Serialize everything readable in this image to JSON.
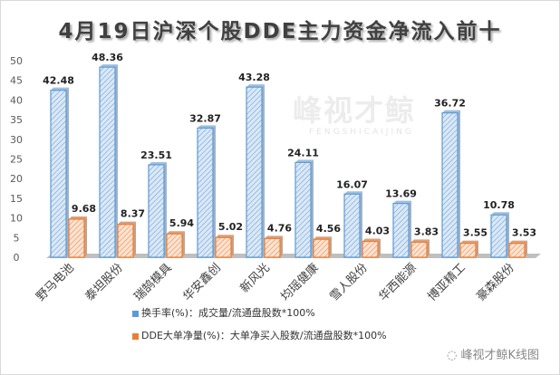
{
  "chart_data": {
    "type": "bar",
    "title": "4月19日沪深个股DDE主力资金净流入前十",
    "categories": [
      "野马电池",
      "泰坦股份",
      "瑞鹄模具",
      "华安鑫创",
      "新风光",
      "均瑶健康",
      "雪人股份",
      "华西能源",
      "博亚精工",
      "豪森股份"
    ],
    "series": [
      {
        "name": "换手率(%)：成交量/流通盘股数*100%",
        "color": "#5b9bd5",
        "values": [
          42.48,
          48.36,
          23.51,
          32.87,
          43.28,
          24.11,
          16.07,
          13.69,
          36.72,
          10.78
        ]
      },
      {
        "name": "DDE大单净量(%)：大单净买入股数/流通盘股数*100%",
        "color": "#ed7d31",
        "values": [
          9.68,
          8.37,
          5.94,
          5.02,
          4.76,
          4.56,
          4.03,
          3.83,
          3.55,
          3.53
        ]
      }
    ],
    "yticks": [
      0,
      5,
      10,
      15,
      20,
      25,
      30,
      35,
      40,
      45,
      50
    ],
    "ylim": [
      0,
      50
    ],
    "grid": false,
    "legend": "bottom"
  },
  "watermark": {
    "text": "峰视才鲸",
    "sub": "FENGSHICAIJING"
  },
  "footer": {
    "wechat": "峰视才鲸K线图"
  }
}
